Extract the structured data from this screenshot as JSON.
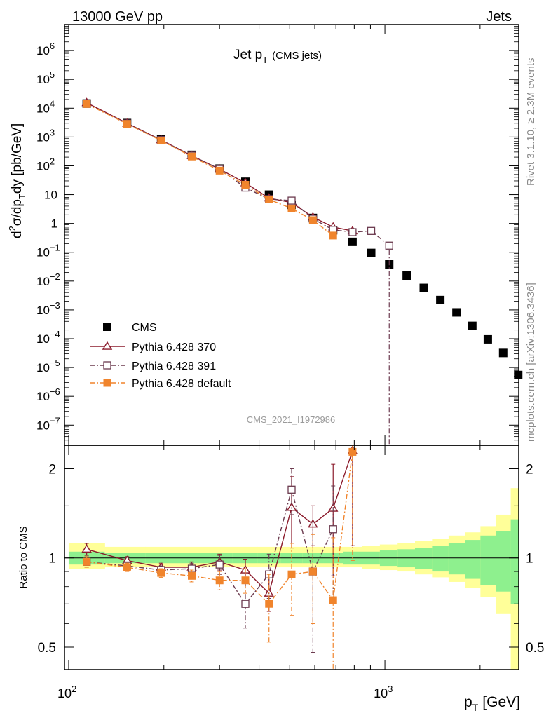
{
  "header": {
    "left": "13000 GeV pp",
    "right": "Jets"
  },
  "side_labels": {
    "rivet": "Rivet 3.1.10, ≥ 2.3M events",
    "mcplots": "mcplots.cern.ch [arXiv:1306.3436]"
  },
  "chart_data": [
    {
      "type": "scatter",
      "title_main": "Jet p",
      "title_sub": "T",
      "title_paren": "(CMS jets)",
      "watermark": "CMS_2021_I1972986",
      "ylabel": "d²σ/dp_T dy [pb/GeV]",
      "xscale": "log",
      "yscale": "log",
      "xlim": [
        97,
        2650
      ],
      "ylim": [
        2e-08,
        8000000.0
      ],
      "y_ticks": [
        {
          "v": 1000000.0,
          "m": "10",
          "e": "6"
        },
        {
          "v": 100000.0,
          "m": "10",
          "e": "5"
        },
        {
          "v": 10000.0,
          "m": "10",
          "e": "4"
        },
        {
          "v": 1000.0,
          "m": "10",
          "e": "3"
        },
        {
          "v": 100.0,
          "m": "10",
          "e": "2"
        },
        {
          "v": 10,
          "m": "10",
          "e": ""
        },
        {
          "v": 1,
          "m": "1",
          "e": ""
        },
        {
          "v": 0.1,
          "m": "10",
          "e": "−1"
        },
        {
          "v": 0.01,
          "m": "10",
          "e": "−2"
        },
        {
          "v": 0.001,
          "m": "10",
          "e": "−3"
        },
        {
          "v": 0.0001,
          "m": "10",
          "e": "−4"
        },
        {
          "v": 1e-05,
          "m": "10",
          "e": "−5"
        },
        {
          "v": 1e-06,
          "m": "10",
          "e": "−6"
        },
        {
          "v": 1e-07,
          "m": "10",
          "e": "−7"
        }
      ],
      "legend_position": "bottom-left",
      "series": [
        {
          "name": "CMS",
          "color": "#000000",
          "marker": "filled-square",
          "x": [
            114,
            153,
            196,
            245,
            300,
            362,
            430,
            507,
            592,
            686,
            790,
            905,
            1032,
            1172,
            1327,
            1497,
            1684,
            1890,
            2116,
            2366,
            2640
          ],
          "y": [
            14500,
            3050,
            850,
            240,
            80,
            28,
            10,
            4.4,
            1.55,
            0.58,
            0.23,
            0.095,
            0.038,
            0.0155,
            0.0058,
            0.0022,
            0.00082,
            0.00028,
            9.5e-05,
            3.2e-05,
            5.5e-06
          ]
        },
        {
          "name": "Pythia 6.428 370",
          "color": "#8b1a2b",
          "marker": "open-triangle",
          "linestyle": "solid",
          "x": [
            114,
            153,
            196,
            245,
            300,
            362,
            430,
            507,
            592,
            686,
            790
          ],
          "y": [
            15500,
            3000,
            790,
            225,
            77,
            25.5,
            7.6,
            5.3,
            1.65,
            0.75,
            0.55
          ]
        },
        {
          "name": "Pythia 6.428 391",
          "color": "#6b3a4e",
          "marker": "open-square",
          "linestyle": "dashdot",
          "x": [
            114,
            153,
            196,
            245,
            300,
            362,
            430,
            507,
            592,
            686,
            790,
            905,
            1032
          ],
          "y": [
            14200,
            2950,
            790,
            225,
            77,
            17.5,
            7.0,
            6.2,
            1.45,
            0.6,
            0.5,
            0.55,
            0.17
          ]
        },
        {
          "name": "Pythia 6.428 default",
          "color": "#f0842c",
          "marker": "filled-square",
          "linestyle": "dashdot",
          "x": [
            114,
            153,
            196,
            245,
            300,
            362,
            430,
            507,
            592,
            686
          ],
          "y": [
            14000,
            2850,
            750,
            210,
            68,
            22,
            6.8,
            3.3,
            1.3,
            0.38
          ]
        }
      ]
    },
    {
      "type": "scatter",
      "ylabel": "Ratio to CMS",
      "xlabel_main": "p",
      "xlabel_sub": "T",
      "xlabel_unit": "[GeV]",
      "xscale": "log",
      "yscale": "log",
      "xlim": [
        97,
        2650
      ],
      "ylim": [
        0.42,
        2.4
      ],
      "y_ticks": [
        {
          "v": 0.5,
          "label": "0.5"
        },
        {
          "v": 1,
          "label": "1"
        },
        {
          "v": 2,
          "label": "2"
        }
      ],
      "x_ticks": [
        {
          "v": 100,
          "m": "10",
          "e": "2"
        },
        {
          "v": 1000,
          "m": "10",
          "e": "3"
        }
      ],
      "bands": {
        "edges": [
          100,
          130,
          175,
          220,
          270,
          330,
          395,
          468,
          548,
          638,
          737,
          845,
          964,
          1097,
          1245,
          1410,
          1590,
          1790,
          2005,
          2245,
          2500,
          2650
        ],
        "inner_lo": [
          0.95,
          0.96,
          0.96,
          0.96,
          0.96,
          0.96,
          0.96,
          0.96,
          0.96,
          0.96,
          0.95,
          0.95,
          0.94,
          0.93,
          0.92,
          0.9,
          0.88,
          0.85,
          0.81,
          0.77,
          0.7
        ],
        "inner_hi": [
          1.05,
          1.04,
          1.04,
          1.04,
          1.04,
          1.04,
          1.04,
          1.04,
          1.04,
          1.04,
          1.05,
          1.05,
          1.06,
          1.07,
          1.08,
          1.1,
          1.12,
          1.15,
          1.19,
          1.23,
          1.35
        ],
        "outer_lo": [
          0.92,
          0.93,
          0.93,
          0.93,
          0.93,
          0.93,
          0.93,
          0.93,
          0.93,
          0.93,
          0.93,
          0.92,
          0.91,
          0.9,
          0.88,
          0.86,
          0.83,
          0.79,
          0.74,
          0.65,
          0.4
        ],
        "outer_hi": [
          1.12,
          1.09,
          1.09,
          1.09,
          1.09,
          1.09,
          1.09,
          1.09,
          1.09,
          1.09,
          1.09,
          1.1,
          1.11,
          1.12,
          1.14,
          1.16,
          1.19,
          1.22,
          1.28,
          1.4,
          1.72
        ],
        "inner_color": "#8ef08e",
        "outer_color": "#ffff99"
      },
      "series": [
        {
          "name": "Pythia 6.428 370",
          "color": "#8b1a2b",
          "x": [
            114,
            153,
            196,
            245,
            300,
            362,
            430,
            507,
            592,
            686,
            790
          ],
          "y": [
            1.07,
            0.98,
            0.93,
            0.93,
            0.97,
            0.91,
            0.76,
            1.48,
            1.3,
            1.47,
            2.3
          ],
          "err": [
            0.05,
            0.03,
            0.03,
            0.04,
            0.06,
            0.08,
            0.1,
            0.4,
            0.2,
            0.6,
            1.2
          ]
        },
        {
          "name": "Pythia 6.428 391",
          "color": "#6b3a4e",
          "x": [
            114,
            153,
            196,
            245,
            300,
            362,
            430,
            507,
            592,
            686
          ],
          "y": [
            0.97,
            0.94,
            0.91,
            0.92,
            0.95,
            0.7,
            0.88,
            1.7,
            0.9,
            1.25
          ],
          "err": [
            0.04,
            0.03,
            0.03,
            0.04,
            0.07,
            0.12,
            0.15,
            0.3,
            0.42,
            0.5
          ]
        },
        {
          "name": "Pythia 6.428 default",
          "color": "#f0842c",
          "x": [
            114,
            153,
            196,
            245,
            300,
            362,
            430,
            507,
            592,
            686,
            790
          ],
          "y": [
            0.97,
            0.93,
            0.89,
            0.87,
            0.84,
            0.84,
            0.7,
            0.88,
            0.9,
            0.72,
            2.28
          ],
          "err": [
            0.04,
            0.03,
            0.03,
            0.04,
            0.06,
            0.08,
            0.18,
            0.24,
            0.3,
            0.45,
            1.3
          ]
        }
      ]
    }
  ]
}
